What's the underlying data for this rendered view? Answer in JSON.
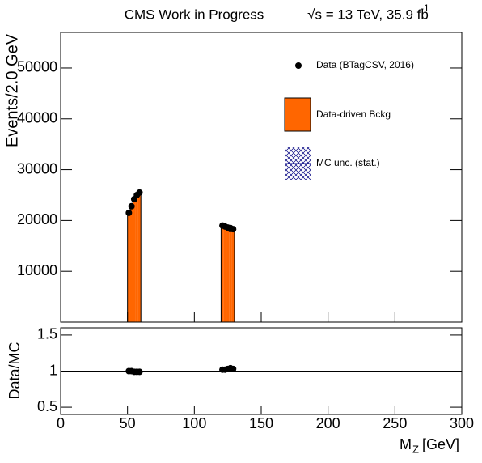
{
  "chart_data": {
    "type": "hist",
    "title": "CMS Work in Progress",
    "title_energy": "√s = 13 TeV, 35.9 fb",
    "title_energy_sup": "-1",
    "x_label": "M",
    "x_label_sub": "Z",
    "x_label_unit": "[GeV]",
    "y_label": "Events/2.0 GeV",
    "ratio_y_label": "Data/MC",
    "xlim": [
      0,
      300
    ],
    "xticks": [
      0,
      50,
      100,
      150,
      200,
      250,
      300
    ],
    "ylim": [
      0,
      57000
    ],
    "yticks": [
      10000,
      20000,
      30000,
      40000,
      50000
    ],
    "ratio_ylim": [
      0.4,
      1.6
    ],
    "ratio_yticks": [
      0.5,
      1,
      1.5
    ],
    "bin_edges": [
      [
        50,
        52,
        54,
        56,
        58,
        60
      ],
      [
        120,
        122,
        124,
        126,
        128,
        130
      ]
    ],
    "series": [
      {
        "name": "Data (BTagCSV, 2016)",
        "color": "#000000",
        "values": [
          [
            21500,
            22800,
            24200,
            25000,
            25500
          ],
          [
            19000,
            18800,
            18600,
            18500,
            18300
          ]
        ]
      },
      {
        "name": "Data-driven Bckg",
        "color": "#ff6600",
        "values": [
          [
            21400,
            22700,
            24400,
            25200,
            25700
          ],
          [
            18600,
            18400,
            18100,
            17800,
            17800
          ]
        ]
      },
      {
        "name": "MC unc. (stat.)",
        "color": "#000080"
      }
    ],
    "ratio_values": [
      [
        1.0,
        1.0,
        0.99,
        0.99,
        0.99
      ],
      [
        1.02,
        1.02,
        1.03,
        1.04,
        1.03
      ]
    ]
  }
}
